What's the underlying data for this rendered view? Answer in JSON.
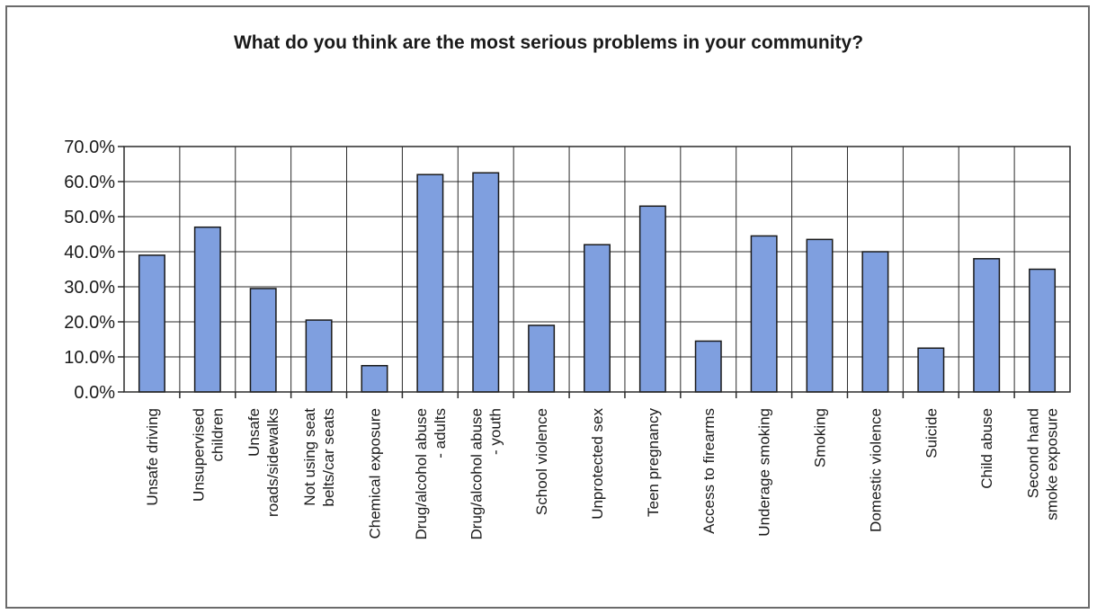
{
  "chart_data": {
    "type": "bar",
    "title": "What do you think are the most serious problems in your community?",
    "xlabel": "",
    "ylabel": "",
    "ylim": [
      0,
      70
    ],
    "y_ticks": [
      "0.0%",
      "10.0%",
      "20.0%",
      "30.0%",
      "40.0%",
      "50.0%",
      "60.0%",
      "70.0%"
    ],
    "grid": "vertical and horizontal",
    "bar_color": "#7f9fdf",
    "categories": [
      [
        "Unsafe driving"
      ],
      [
        "Unsupervised",
        "children"
      ],
      [
        "Unsafe",
        "roads/sidewalks"
      ],
      [
        "Not using seat",
        "belts/car seats"
      ],
      [
        "Chemical exposure"
      ],
      [
        "Drug/alcohol abuse",
        "- adults"
      ],
      [
        "Drug/alcohol abuse",
        "- youth"
      ],
      [
        "School violence"
      ],
      [
        "Unprotected sex"
      ],
      [
        "Teen pregnancy"
      ],
      [
        "Access to firearms"
      ],
      [
        "Underage smoking"
      ],
      [
        "Smoking"
      ],
      [
        "Domestic violence"
      ],
      [
        "Suicide"
      ],
      [
        "Child abuse"
      ],
      [
        "Second hand",
        "smoke exposure"
      ]
    ],
    "values": [
      39.0,
      47.0,
      29.5,
      20.5,
      7.5,
      62.0,
      62.5,
      19.0,
      42.0,
      53.0,
      14.5,
      44.5,
      43.5,
      40.0,
      12.5,
      38.0,
      35.0
    ]
  }
}
